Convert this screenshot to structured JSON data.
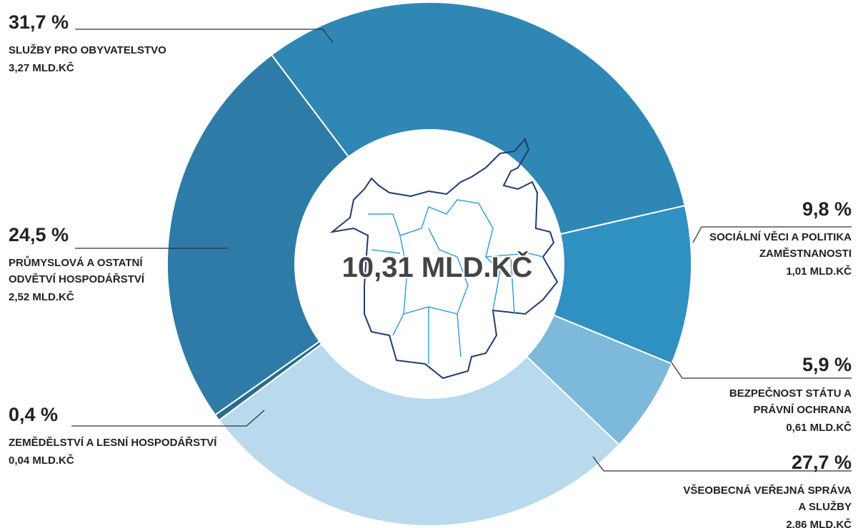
{
  "chart_data": {
    "type": "donut",
    "center_label": "10,31 MLD.KČ",
    "categories": [
      "SLUŽBY PRO OBYVATELSTVO",
      "SOCIÁLNÍ VĚCI A POLITIKA ZAMĚSTNANOSTI",
      "BEZPEČNOST STÁTU A PRÁVNÍ OCHRANA",
      "VŠEOBECNÁ VEŘEJNÁ SPRÁVA A SLUŽBY",
      "ZEMĚDĚLSTVÍ A LESNÍ HOSPODÁŘSTVÍ",
      "PRŮMYSLOVÁ A OSTATNÍ ODVĚTVÍ HOSPODÁŘSTVÍ"
    ],
    "values": [
      31.7,
      9.8,
      5.9,
      27.7,
      0.4,
      24.5
    ],
    "value_labels": [
      "31,7 %",
      "9,8 %",
      "5,9 %",
      "27,7 %",
      "0,4 %",
      "24,5 %"
    ],
    "amounts": [
      "3,27 MLD.KČ",
      "1,01 MLD.KČ",
      "0,61 MLD.KČ",
      "2,86 MLD.KČ",
      "0,04 MLD.KČ",
      "2,52 MLD.KČ"
    ],
    "colors": [
      "#2f87b5",
      "#2f90c2",
      "#7cb9da",
      "#b9d9ed",
      "#286c8d",
      "#2e7ba7"
    ]
  }
}
